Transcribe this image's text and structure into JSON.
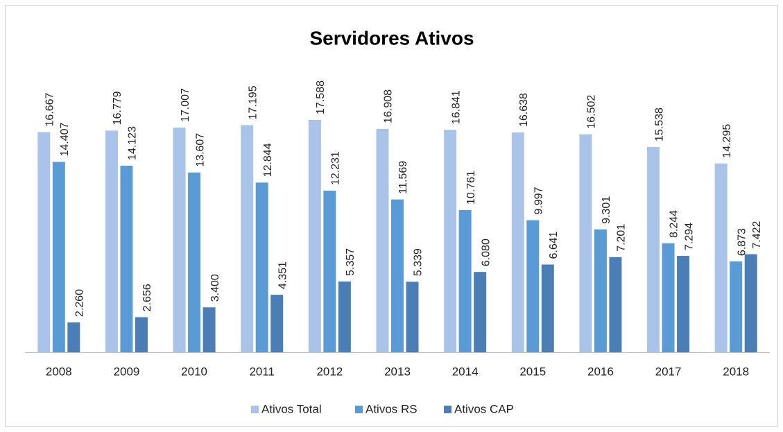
{
  "chart_data": {
    "type": "bar",
    "title": "Servidores Ativos",
    "categories": [
      "2008",
      "2009",
      "2010",
      "2011",
      "2012",
      "2013",
      "2014",
      "2015",
      "2016",
      "2017",
      "2018"
    ],
    "series": [
      {
        "name": "Ativos Total",
        "color": "#a9c4e8",
        "values": [
          16667,
          16779,
          17007,
          17195,
          17588,
          16908,
          16841,
          16638,
          16502,
          15538,
          14295
        ],
        "value_labels": [
          "16.667",
          "16.779",
          "17.007",
          "17.195",
          "17.588",
          "16.908",
          "16.841",
          "16.638",
          "16.502",
          "15.538",
          "14.295"
        ]
      },
      {
        "name": "Ativos RS",
        "color": "#5b9bd5",
        "values": [
          14407,
          14123,
          13607,
          12844,
          12231,
          11569,
          10761,
          9997,
          9301,
          8244,
          6873
        ],
        "value_labels": [
          "14.407",
          "14.123",
          "13.607",
          "12.844",
          "12.231",
          "11.569",
          "10.761",
          "9.997",
          "9.301",
          "8.244",
          "6.873"
        ]
      },
      {
        "name": "Ativos CAP",
        "color": "#4a7eb5",
        "values": [
          2260,
          2656,
          3400,
          4351,
          5357,
          5339,
          6080,
          6641,
          7201,
          7294,
          7422
        ],
        "value_labels": [
          "2.260",
          "2.656",
          "3.400",
          "4.351",
          "5.357",
          "5.339",
          "6.080",
          "6.641",
          "7.201",
          "7.294",
          "7.422"
        ]
      }
    ],
    "ylim": [
      0,
      20000
    ],
    "legend": "bottom"
  }
}
